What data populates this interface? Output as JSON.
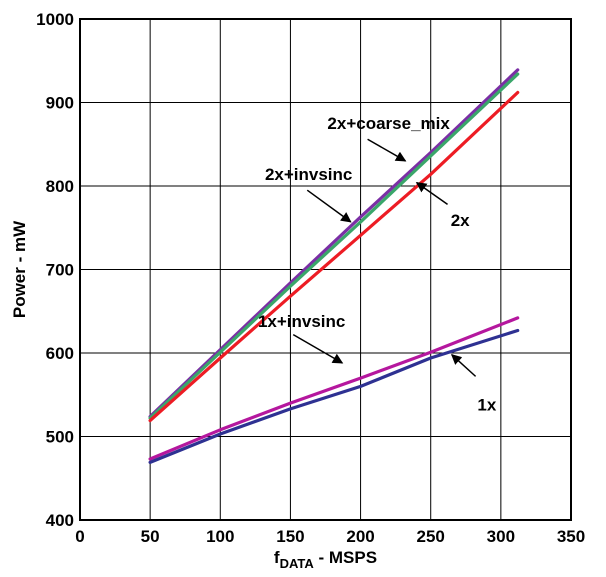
{
  "chart_data": {
    "type": "line",
    "title": "",
    "xlabel": {
      "main": "f",
      "subscript": "DATA",
      "suffix": " - MSPS"
    },
    "ylabel": "Power - mW",
    "xlim": [
      0,
      350
    ],
    "ylim": [
      400,
      1000
    ],
    "x_ticks": [
      0,
      50,
      100,
      150,
      200,
      250,
      300,
      350
    ],
    "y_ticks": [
      400,
      500,
      600,
      700,
      800,
      900,
      1000
    ],
    "grid": true,
    "legend": "none",
    "colors": {
      "1x": "#2e3192",
      "1x+invsinc": "#b5179e",
      "2x": "#ed1c24",
      "2x+invsinc": "#7b2fa5",
      "2x+coarse_mix": "#3aa66a"
    },
    "series": [
      {
        "name": "2x+invsinc",
        "x": [
          50,
          100,
          150,
          200,
          250,
          312
        ],
        "y": [
          524,
          604,
          684,
          763,
          840,
          939
        ]
      },
      {
        "name": "2x+coarse_mix",
        "x": [
          50,
          100,
          150,
          200,
          250,
          312
        ],
        "y": [
          522,
          601,
          680,
          757,
          836,
          934
        ]
      },
      {
        "name": "2x",
        "x": [
          50,
          100,
          150,
          200,
          250,
          312
        ],
        "y": [
          519,
          594,
          668,
          741,
          814,
          912
        ]
      },
      {
        "name": "1x+invsinc",
        "x": [
          50,
          100,
          150,
          200,
          250,
          312
        ],
        "y": [
          473,
          508,
          540,
          570,
          601,
          642
        ]
      },
      {
        "name": "1x",
        "x": [
          50,
          100,
          150,
          200,
          250,
          312
        ],
        "y": [
          469,
          503,
          533,
          560,
          594,
          627
        ]
      }
    ],
    "annotations": [
      {
        "text": "2x+coarse_mix",
        "series": "2x+coarse_mix",
        "label_at": [
          220,
          868
        ],
        "arrow_from": [
          205,
          856
        ],
        "arrow_to": [
          232,
          830
        ]
      },
      {
        "text": "2x+invsinc",
        "series": "2x+invsinc",
        "label_at": [
          163,
          807
        ],
        "arrow_from": [
          162,
          795
        ],
        "arrow_to": [
          193,
          757
        ]
      },
      {
        "text": "2x",
        "series": "2x",
        "label_at": [
          271,
          752
        ],
        "arrow_from": [
          262,
          778
        ],
        "arrow_to": [
          240,
          804
        ]
      },
      {
        "text": "1x+invsinc",
        "series": "1x+invsinc",
        "label_at": [
          158,
          631
        ],
        "arrow_from": [
          152,
          622
        ],
        "arrow_to": [
          187,
          588
        ]
      },
      {
        "text": "1x",
        "series": "1x",
        "label_at": [
          290,
          531
        ],
        "arrow_from": [
          282,
          572
        ],
        "arrow_to": [
          265,
          598
        ]
      }
    ]
  }
}
